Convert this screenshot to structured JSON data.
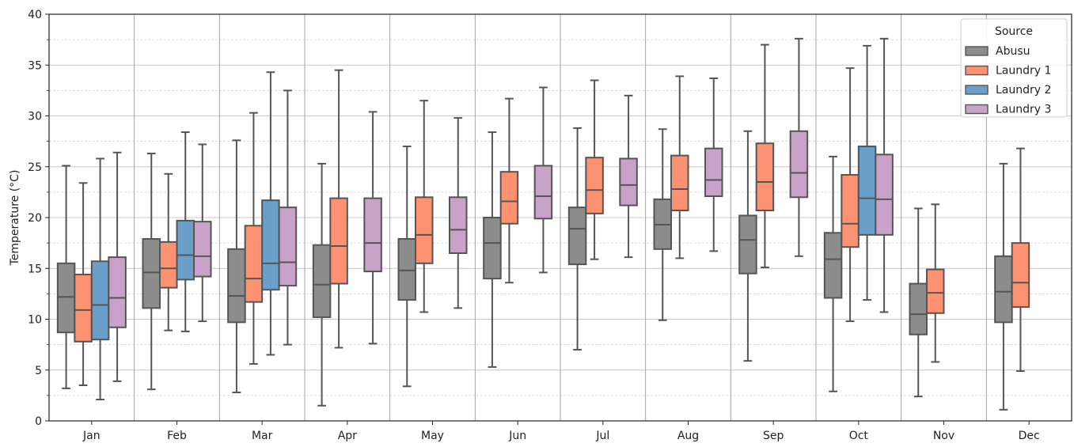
{
  "chart_data": {
    "type": "box",
    "title": "",
    "xlabel": "",
    "ylabel": "Temperature (°C)",
    "ylim": [
      0,
      40
    ],
    "y_ticks": [
      "0",
      "5",
      "10",
      "15",
      "20",
      "25",
      "30",
      "35",
      "40"
    ],
    "grid": true,
    "legend_placement": "top-right",
    "legend": {
      "title": "Source",
      "entries": [
        "Abusu",
        "Laundry 1",
        "Laundry 2",
        "Laundry 3"
      ]
    },
    "categories": [
      "Jan",
      "Feb",
      "Mar",
      "Apr",
      "May",
      "Jun",
      "Jul",
      "Aug",
      "Sep",
      "Oct",
      "Nov",
      "Dec"
    ],
    "colors": {
      "Abusu": "#8c8c8c",
      "Laundry 1": "#fc9272",
      "Laundry 2": "#6a9fca",
      "Laundry 3": "#c8a2c8"
    },
    "boxes": [
      {
        "month": "Jan",
        "source": "Abusu",
        "min": 3.2,
        "q1": 8.7,
        "median": 12.2,
        "q3": 15.5,
        "max": 25.1
      },
      {
        "month": "Jan",
        "source": "Laundry 1",
        "min": 3.5,
        "q1": 7.8,
        "median": 10.9,
        "q3": 14.4,
        "max": 23.4
      },
      {
        "month": "Jan",
        "source": "Laundry 2",
        "min": 2.1,
        "q1": 8.0,
        "median": 11.4,
        "q3": 15.7,
        "max": 25.8
      },
      {
        "month": "Jan",
        "source": "Laundry 3",
        "min": 3.9,
        "q1": 9.2,
        "median": 12.1,
        "q3": 16.1,
        "max": 26.4
      },
      {
        "month": "Feb",
        "source": "Abusu",
        "min": 3.1,
        "q1": 11.1,
        "median": 14.6,
        "q3": 17.9,
        "max": 26.3
      },
      {
        "month": "Feb",
        "source": "Laundry 1",
        "min": 8.9,
        "q1": 13.1,
        "median": 15.0,
        "q3": 17.6,
        "max": 24.3
      },
      {
        "month": "Feb",
        "source": "Laundry 2",
        "min": 8.8,
        "q1": 13.9,
        "median": 16.3,
        "q3": 19.7,
        "max": 28.4
      },
      {
        "month": "Feb",
        "source": "Laundry 3",
        "min": 9.8,
        "q1": 14.2,
        "median": 16.2,
        "q3": 19.6,
        "max": 27.2
      },
      {
        "month": "Mar",
        "source": "Abusu",
        "min": 2.8,
        "q1": 9.7,
        "median": 12.3,
        "q3": 16.9,
        "max": 27.6
      },
      {
        "month": "Mar",
        "source": "Laundry 1",
        "min": 5.6,
        "q1": 11.7,
        "median": 14.0,
        "q3": 19.2,
        "max": 30.3
      },
      {
        "month": "Mar",
        "source": "Laundry 2",
        "min": 6.5,
        "q1": 12.9,
        "median": 15.5,
        "q3": 21.7,
        "max": 34.3
      },
      {
        "month": "Mar",
        "source": "Laundry 3",
        "min": 7.5,
        "q1": 13.3,
        "median": 15.6,
        "q3": 21.0,
        "max": 32.5
      },
      {
        "month": "Apr",
        "source": "Abusu",
        "min": 1.5,
        "q1": 10.2,
        "median": 13.4,
        "q3": 17.3,
        "max": 25.3
      },
      {
        "month": "Apr",
        "source": "Laundry 1",
        "min": 7.2,
        "q1": 13.5,
        "median": 17.2,
        "q3": 21.9,
        "max": 34.5
      },
      {
        "month": "Apr",
        "source": "Laundry 3",
        "min": 7.6,
        "q1": 14.7,
        "median": 17.5,
        "q3": 21.9,
        "max": 30.4
      },
      {
        "month": "May",
        "source": "Abusu",
        "min": 3.4,
        "q1": 11.9,
        "median": 14.8,
        "q3": 17.9,
        "max": 27.0
      },
      {
        "month": "May",
        "source": "Laundry 1",
        "min": 10.7,
        "q1": 15.5,
        "median": 18.3,
        "q3": 22.0,
        "max": 31.5
      },
      {
        "month": "May",
        "source": "Laundry 3",
        "min": 11.1,
        "q1": 16.5,
        "median": 18.8,
        "q3": 22.0,
        "max": 29.8
      },
      {
        "month": "Jun",
        "source": "Abusu",
        "min": 5.3,
        "q1": 14.0,
        "median": 17.5,
        "q3": 20.0,
        "max": 28.4
      },
      {
        "month": "Jun",
        "source": "Laundry 1",
        "min": 13.6,
        "q1": 19.4,
        "median": 21.6,
        "q3": 24.5,
        "max": 31.7
      },
      {
        "month": "Jun",
        "source": "Laundry 3",
        "min": 14.6,
        "q1": 19.9,
        "median": 22.1,
        "q3": 25.1,
        "max": 32.8
      },
      {
        "month": "Jul",
        "source": "Abusu",
        "min": 7.0,
        "q1": 15.4,
        "median": 18.9,
        "q3": 21.0,
        "max": 28.8
      },
      {
        "month": "Jul",
        "source": "Laundry 1",
        "min": 15.9,
        "q1": 20.4,
        "median": 22.7,
        "q3": 25.9,
        "max": 33.5
      },
      {
        "month": "Jul",
        "source": "Laundry 3",
        "min": 16.1,
        "q1": 21.2,
        "median": 23.2,
        "q3": 25.8,
        "max": 32.0
      },
      {
        "month": "Aug",
        "source": "Abusu",
        "min": 9.9,
        "q1": 16.9,
        "median": 19.3,
        "q3": 21.8,
        "max": 28.7
      },
      {
        "month": "Aug",
        "source": "Laundry 1",
        "min": 16.0,
        "q1": 20.7,
        "median": 22.8,
        "q3": 26.1,
        "max": 33.9
      },
      {
        "month": "Aug",
        "source": "Laundry 3",
        "min": 16.7,
        "q1": 22.1,
        "median": 23.7,
        "q3": 26.8,
        "max": 33.7
      },
      {
        "month": "Sep",
        "source": "Abusu",
        "min": 5.9,
        "q1": 14.5,
        "median": 17.8,
        "q3": 20.2,
        "max": 28.5
      },
      {
        "month": "Sep",
        "source": "Laundry 1",
        "min": 15.1,
        "q1": 20.7,
        "median": 23.5,
        "q3": 27.3,
        "max": 37.0
      },
      {
        "month": "Sep",
        "source": "Laundry 3",
        "min": 16.2,
        "q1": 22.0,
        "median": 24.4,
        "q3": 28.5,
        "max": 37.6
      },
      {
        "month": "Oct",
        "source": "Abusu",
        "min": 2.9,
        "q1": 12.1,
        "median": 15.9,
        "q3": 18.5,
        "max": 26.0
      },
      {
        "month": "Oct",
        "source": "Laundry 1",
        "min": 9.8,
        "q1": 17.1,
        "median": 19.4,
        "q3": 24.2,
        "max": 34.7
      },
      {
        "month": "Oct",
        "source": "Laundry 2",
        "min": 11.9,
        "q1": 18.3,
        "median": 21.9,
        "q3": 27.0,
        "max": 36.9
      },
      {
        "month": "Oct",
        "source": "Laundry 3",
        "min": 10.7,
        "q1": 18.3,
        "median": 21.8,
        "q3": 26.2,
        "max": 37.6
      },
      {
        "month": "Nov",
        "source": "Abusu",
        "min": 2.4,
        "q1": 8.5,
        "median": 10.5,
        "q3": 13.5,
        "max": 20.9
      },
      {
        "month": "Nov",
        "source": "Laundry 1",
        "min": 5.8,
        "q1": 10.6,
        "median": 12.6,
        "q3": 14.9,
        "max": 21.3
      },
      {
        "month": "Dec",
        "source": "Abusu",
        "min": 1.1,
        "q1": 9.7,
        "median": 12.7,
        "q3": 16.2,
        "max": 25.3
      },
      {
        "month": "Dec",
        "source": "Laundry 1",
        "min": 4.9,
        "q1": 11.2,
        "median": 13.6,
        "q3": 17.5,
        "max": 26.8
      }
    ]
  }
}
